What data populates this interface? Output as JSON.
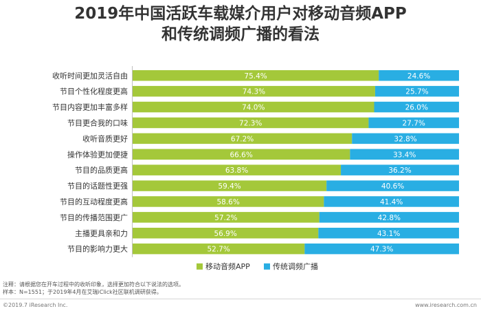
{
  "header": {
    "title_line1": "2019年中国活跃车载媒介用户对移动音频APP",
    "title_line2": "和传统调频广播的看法"
  },
  "chart_data": {
    "type": "bar",
    "stacked": true,
    "orientation": "horizontal",
    "percent_stacked": true,
    "categories": [
      "收听时间更加灵活自由",
      "节目个性化程度更高",
      "节目内容更加丰富多样",
      "节目更合我的口味",
      "收听音质更好",
      "操作体验更加便捷",
      "节目的品质更高",
      "节目的话题性更强",
      "节目的互动程度更高",
      "节目的传播范围更广",
      "主播更具亲和力",
      "节目的影响力更大"
    ],
    "series": [
      {
        "name": "移动音频APP",
        "color": "#a4c83a",
        "values": [
          75.4,
          74.3,
          74.0,
          72.3,
          67.2,
          66.6,
          63.8,
          59.4,
          58.6,
          57.2,
          56.9,
          52.7
        ],
        "labels": [
          "75.4%",
          "74.3%",
          "74.0%",
          "72.3%",
          "67.2%",
          "66.6%",
          "63.8%",
          "59.4%",
          "58.6%",
          "57.2%",
          "56.9%",
          "52.7%"
        ]
      },
      {
        "name": "传统调频广播",
        "color": "#29aee3",
        "values": [
          24.6,
          25.7,
          26.0,
          27.7,
          32.8,
          33.4,
          36.2,
          40.6,
          41.4,
          42.8,
          43.1,
          47.3
        ],
        "labels": [
          "24.6%",
          "25.7%",
          "26.0%",
          "27.7%",
          "32.8%",
          "33.4%",
          "36.2%",
          "40.6%",
          "41.4%",
          "42.8%",
          "43.1%",
          "47.3%"
        ]
      }
    ],
    "xlim": [
      0,
      100
    ],
    "legend_position": "bottom"
  },
  "footer": {
    "note_line1": "注释：请根据您在开车过程中的收听印象，选择更加符合以下说法的选项。",
    "note_line2": "样本：N=1551；于2019年4月在艾瑞iClick社区联机调研获得。",
    "copyright": "©2019.7 iResearch Inc.",
    "website": "www.iresearch.com.cn"
  }
}
